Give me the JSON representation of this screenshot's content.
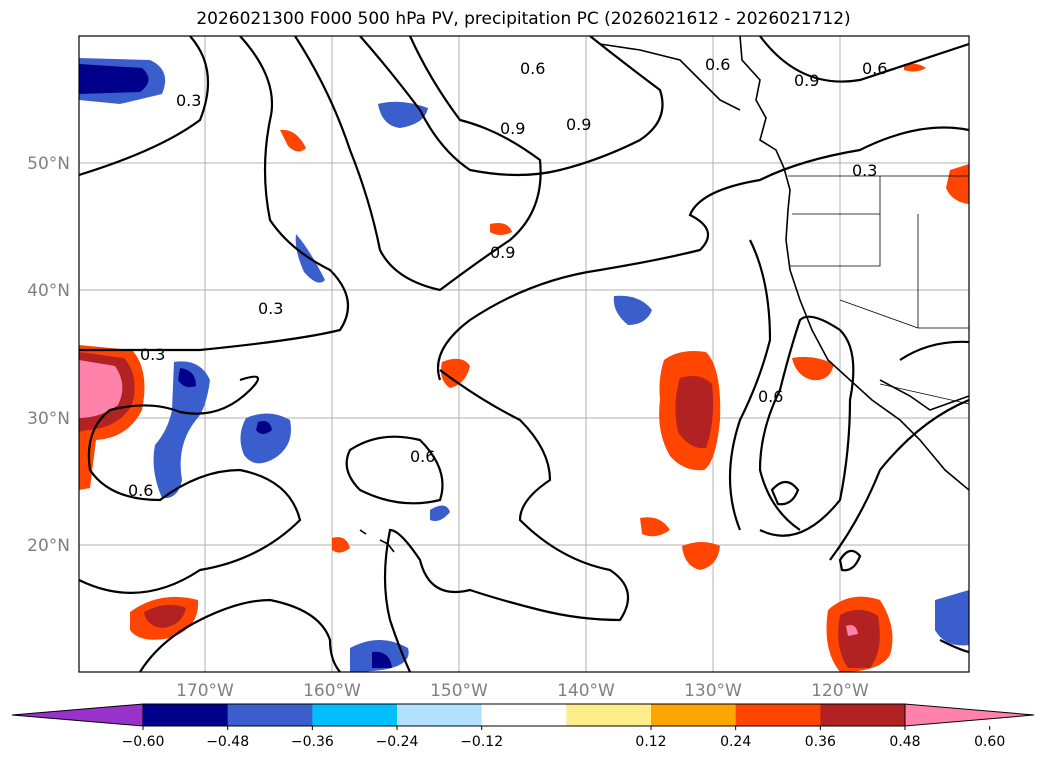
{
  "title": "2026021300 F000 500 hPa PV, precipitation PC (2026021612 - 2026021712)",
  "map": {
    "lat_labels": [
      "50°N",
      "40°N",
      "30°N",
      "20°N"
    ],
    "lon_labels": [
      "170°W",
      "160°W",
      "150°W",
      "140°W",
      "130°W",
      "120°W"
    ],
    "contour_labels": [
      "0.3",
      "0.6",
      "0.9"
    ]
  },
  "colorbar": {
    "ticks": [
      "−0.60",
      "−0.48",
      "−0.36",
      "−0.24",
      "−0.12",
      "0.12",
      "0.24",
      "0.36",
      "0.48",
      "0.60"
    ],
    "colors": [
      "#9932cc",
      "#00008b",
      "#3a5fcd",
      "#00bfff",
      "#b0e2ff",
      "#ffffff",
      "#ffec8b",
      "#ffa500",
      "#ff4500",
      "#b22222",
      "#ff82ab"
    ]
  },
  "colors": {
    "grid": "#b0b0b0",
    "contour": "#000000",
    "label": "#808080"
  }
}
